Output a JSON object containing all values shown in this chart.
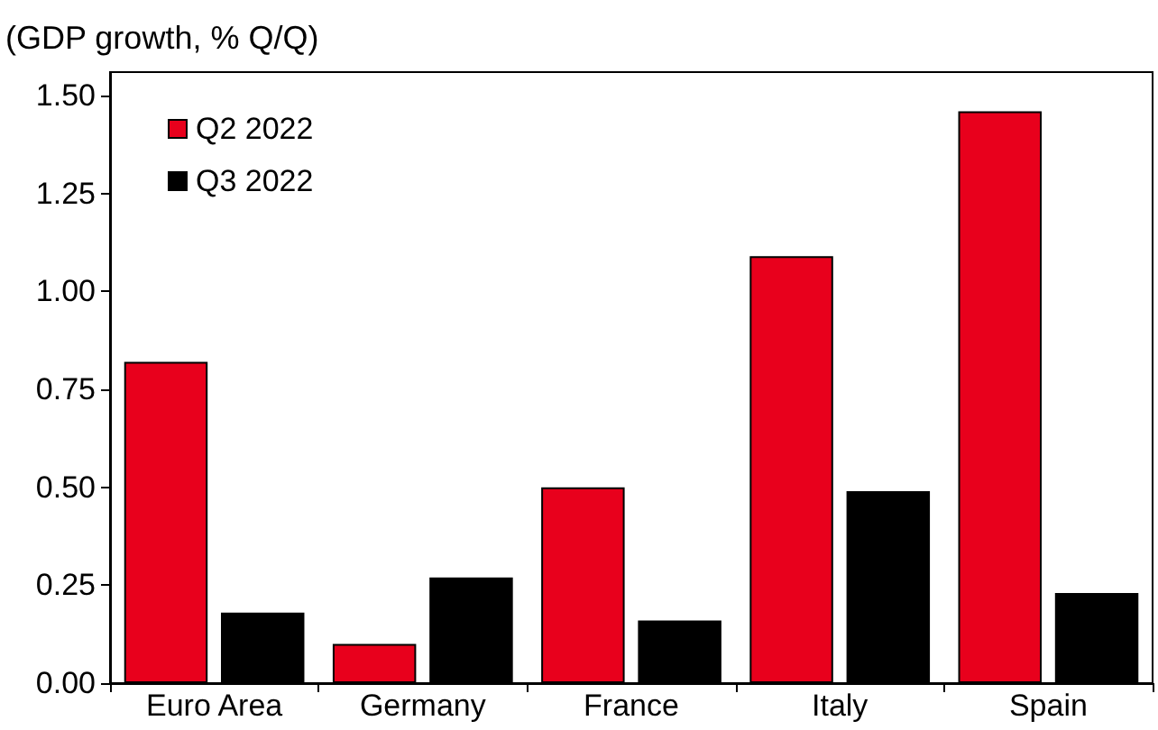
{
  "chart_data": {
    "type": "bar",
    "ylabel": "(GDP growth, % Q/Q)",
    "categories": [
      "Euro Area",
      "Germany",
      "France",
      "Italy",
      "Spain"
    ],
    "series": [
      {
        "name": "Q2 2022",
        "color": "#e8001c",
        "values": [
          0.82,
          0.1,
          0.5,
          1.09,
          1.46
        ]
      },
      {
        "name": "Q3 2022",
        "color": "#000000",
        "values": [
          0.18,
          0.27,
          0.16,
          0.49,
          0.23
        ]
      }
    ],
    "ylim": [
      0,
      1.56
    ],
    "yticks": [
      {
        "value": 0,
        "label": "0.00"
      },
      {
        "value": 0.25,
        "label": "0.25"
      },
      {
        "value": 0.5,
        "label": "0.50"
      },
      {
        "value": 0.75,
        "label": "0.75"
      },
      {
        "value": 1,
        "label": "1.00"
      },
      {
        "value": 1.25,
        "label": "1.25"
      },
      {
        "value": 1.5,
        "label": "1.50"
      }
    ],
    "grid": false,
    "legend": "top left"
  }
}
